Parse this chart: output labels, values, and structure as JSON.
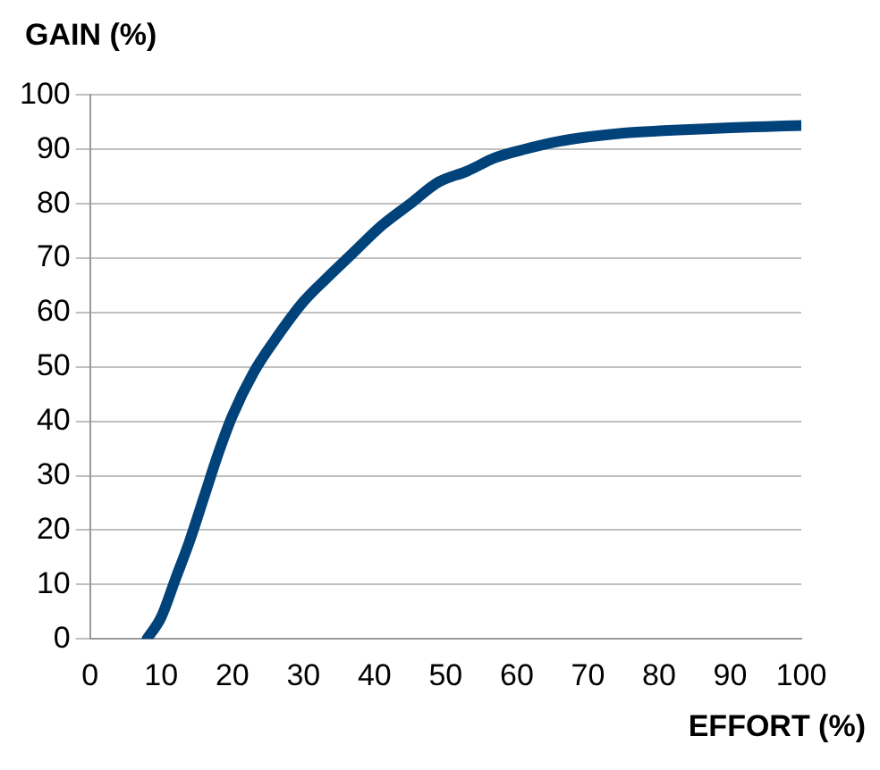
{
  "chart_data": {
    "type": "line",
    "xlabel": "EFFORT (%)",
    "ylabel": "GAIN (%)",
    "series": [
      {
        "color": "#00427a",
        "x": [
          8,
          10,
          12,
          14,
          16,
          18,
          20,
          23,
          26,
          30,
          33,
          37,
          41,
          45,
          49,
          53,
          57,
          61,
          66,
          70,
          75,
          80,
          85,
          90,
          95,
          100
        ],
        "values": [
          0,
          4,
          11,
          18,
          26,
          34,
          41,
          49,
          55,
          62,
          66,
          71,
          76,
          80,
          84,
          86,
          88.5,
          90,
          91.5,
          92.3,
          93,
          93.4,
          93.7,
          94,
          94.2,
          94.4
        ]
      }
    ],
    "xlim": [
      0,
      100
    ],
    "ylim": [
      0,
      100
    ],
    "xticks": [
      0,
      10,
      20,
      30,
      40,
      50,
      60,
      70,
      80,
      90,
      100
    ],
    "yticks": [
      0,
      10,
      20,
      30,
      40,
      50,
      60,
      70,
      80,
      90,
      100
    ],
    "grid": "y",
    "legend": false,
    "marker": "none",
    "line_style": "solid"
  }
}
